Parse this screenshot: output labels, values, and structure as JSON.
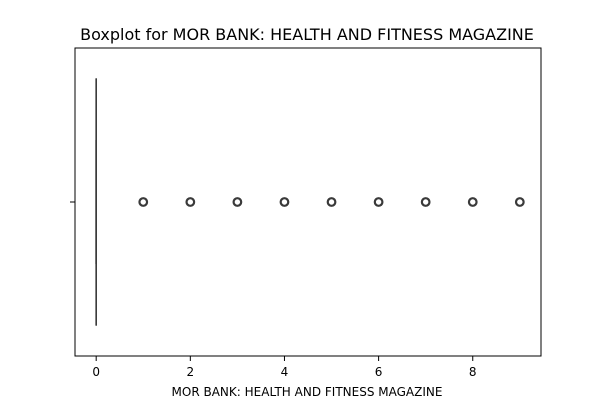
{
  "chart_data": {
    "type": "boxplot",
    "title": "Boxplot for MOR BANK: HEALTH AND FITNESS MAGAZINE",
    "xlabel": "MOR BANK: HEALTH AND FITNESS MAGAZINE",
    "ylabel": "",
    "orientation": "horizontal",
    "xlim": [
      -0.45,
      9.45
    ],
    "xticks": [
      0,
      2,
      4,
      6,
      8
    ],
    "xtick_labels": [
      "0",
      "2",
      "4",
      "6",
      "8"
    ],
    "box": {
      "min": 0,
      "q1": 0,
      "median": 0,
      "q3": 0,
      "max": 0
    },
    "outliers": [
      1,
      2,
      3,
      4,
      5,
      6,
      7,
      8,
      9
    ],
    "grid": false,
    "colors": {
      "frame": "#000000",
      "box": "#3a3a3a",
      "outlier_edge": "#3a3a3a"
    }
  }
}
